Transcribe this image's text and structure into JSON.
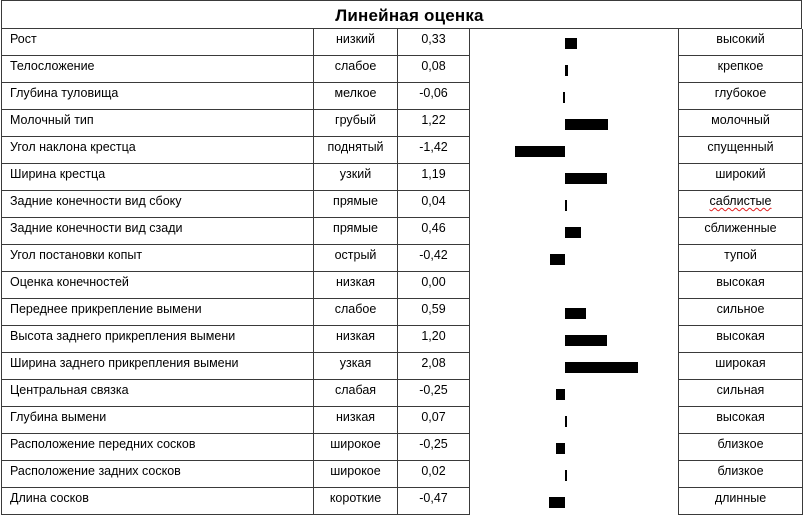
{
  "title": "Линейная оценка",
  "rows": [
    {
      "trait": "Рост",
      "low": "низкий",
      "value": "0,33",
      "high": "высокий"
    },
    {
      "trait": "Телосложение",
      "low": "слабое",
      "value": "0,08",
      "high": "крепкое"
    },
    {
      "trait": "Глубина туловища",
      "low": "мелкое",
      "value": "-0,06",
      "high": "глубокое"
    },
    {
      "trait": "Молочный тип",
      "low": "грубый",
      "value": "1,22",
      "high": "молочный"
    },
    {
      "trait": "Угол наклона крестца",
      "low": "поднятый",
      "value": "-1,42",
      "high": "спущенный"
    },
    {
      "trait": "Ширина крестца",
      "low": "узкий",
      "value": "1,19",
      "high": "широкий"
    },
    {
      "trait": "Задние конечности вид сбоку",
      "low": "прямые",
      "value": "0,04",
      "high": "саблистые",
      "high_spellcheck": true
    },
    {
      "trait": "Задние конечности вид сзади",
      "low": "прямые",
      "value": "0,46",
      "high": "сближенные"
    },
    {
      "trait": "Угол постановки копыт",
      "low": "острый",
      "value": "-0,42",
      "high": "тупой"
    },
    {
      "trait": "Оценка конечностей",
      "low": "низкая",
      "value": "0,00",
      "high": "высокая"
    },
    {
      "trait": "Переднее прикрепление вымени",
      "low": "слабое",
      "value": "0,59",
      "high": "сильное"
    },
    {
      "trait": "Высота заднего прикрепления вымени",
      "low": "низкая",
      "value": "1,20",
      "high": "высокая"
    },
    {
      "trait": "Ширина заднего прикрепления вымени",
      "low": "узкая",
      "value": "2,08",
      "high": "широкая"
    },
    {
      "trait": "Центральная связка",
      "low": "слабая",
      "value": "-0,25",
      "high": "сильная"
    },
    {
      "trait": "Глубина вымени",
      "low": "низкая",
      "value": "0,07",
      "high": "высокая"
    },
    {
      "trait": "Расположение передних сосков",
      "low": "широкое",
      "value": "-0,25",
      "high": "близкое"
    },
    {
      "trait": "Расположение задних сосков",
      "low": "широкое",
      "value": "0,02",
      "high": "близкое"
    },
    {
      "trait": "Длина сосков",
      "low": "короткие",
      "value": "-0,47",
      "high": "длинные"
    }
  ],
  "colors": {
    "bar": "#000000",
    "border": "#3a3a3a",
    "spellcheck": "#e02020"
  },
  "chart_data": {
    "type": "bar",
    "orientation": "horizontal",
    "title": "Линейная оценка",
    "categories": [
      "Рост",
      "Телосложение",
      "Глубина туловища",
      "Молочный тип",
      "Угол наклона крестца",
      "Ширина крестца",
      "Задние конечности вид сбоку",
      "Задние конечности вид сзади",
      "Угол постановки копыт",
      "Оценка конечностей",
      "Переднее прикрепление вымени",
      "Высота заднего прикрепления вымени",
      "Ширина заднего прикрепления вымени",
      "Центральная связка",
      "Глубина вымени",
      "Расположение передних сосков",
      "Расположение задних сосков",
      "Длина сосков"
    ],
    "values": [
      0.33,
      0.08,
      -0.06,
      1.22,
      -1.42,
      1.19,
      0.04,
      0.46,
      -0.42,
      0.0,
      0.59,
      1.2,
      2.08,
      -0.25,
      0.07,
      -0.25,
      0.02,
      -0.47
    ],
    "low_labels": [
      "низкий",
      "слабое",
      "мелкое",
      "грубый",
      "поднятый",
      "узкий",
      "прямые",
      "прямые",
      "острый",
      "низкая",
      "слабое",
      "низкая",
      "узкая",
      "слабая",
      "низкая",
      "широкое",
      "широкое",
      "короткие"
    ],
    "high_labels": [
      "высокий",
      "крепкое",
      "глубокое",
      "молочный",
      "спущенный",
      "широкий",
      "саблистые",
      "сближенные",
      "тупой",
      "высокая",
      "сильное",
      "высокая",
      "широкая",
      "сильная",
      "высокая",
      "близкое",
      "близкое",
      "длинные"
    ],
    "xlabel": "",
    "ylabel": "",
    "xlim": [
      -2.8,
      3.2
    ],
    "grid": false,
    "legend": "none"
  }
}
